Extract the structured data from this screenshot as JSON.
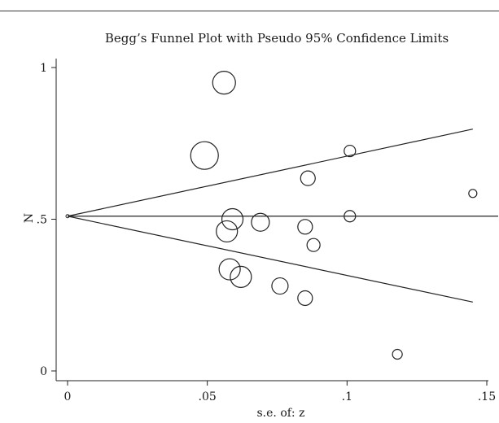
{
  "chart_data": {
    "type": "scatter",
    "title": "Begg’s Funnel Plot with Pseudo 95% Confidence Limits",
    "xlabel": "s.e. of: z",
    "ylabel": "N",
    "xlim": [
      0,
      0.15
    ],
    "ylim": [
      0,
      1
    ],
    "x_ticks": [
      0,
      0.05,
      0.1,
      0.15
    ],
    "x_tick_labels": [
      "0",
      ".05",
      ".1",
      ".15"
    ],
    "y_ticks": [
      0,
      0.5,
      1
    ],
    "y_tick_labels": [
      "0",
      ".5",
      "1"
    ],
    "grid": false,
    "pooled_estimate": 0.51,
    "confidence_limits": {
      "upper": {
        "x": [
          0,
          0.145
        ],
        "y": [
          0.51,
          0.797
        ]
      },
      "lower": {
        "x": [
          0,
          0.145
        ],
        "y": [
          0.51,
          0.227
        ]
      }
    },
    "points": [
      {
        "x": 0.056,
        "y": 0.95,
        "weight": 14
      },
      {
        "x": 0.049,
        "y": 0.71,
        "weight": 17
      },
      {
        "x": 0.059,
        "y": 0.5,
        "weight": 13
      },
      {
        "x": 0.057,
        "y": 0.46,
        "weight": 13
      },
      {
        "x": 0.069,
        "y": 0.49,
        "weight": 11
      },
      {
        "x": 0.058,
        "y": 0.335,
        "weight": 13
      },
      {
        "x": 0.062,
        "y": 0.31,
        "weight": 13
      },
      {
        "x": 0.076,
        "y": 0.28,
        "weight": 10
      },
      {
        "x": 0.085,
        "y": 0.24,
        "weight": 9
      },
      {
        "x": 0.085,
        "y": 0.475,
        "weight": 9
      },
      {
        "x": 0.088,
        "y": 0.415,
        "weight": 8
      },
      {
        "x": 0.086,
        "y": 0.635,
        "weight": 9
      },
      {
        "x": 0.101,
        "y": 0.725,
        "weight": 7
      },
      {
        "x": 0.101,
        "y": 0.51,
        "weight": 7
      },
      {
        "x": 0.145,
        "y": 0.585,
        "weight": 5
      },
      {
        "x": 0.118,
        "y": 0.055,
        "weight": 6
      }
    ]
  }
}
